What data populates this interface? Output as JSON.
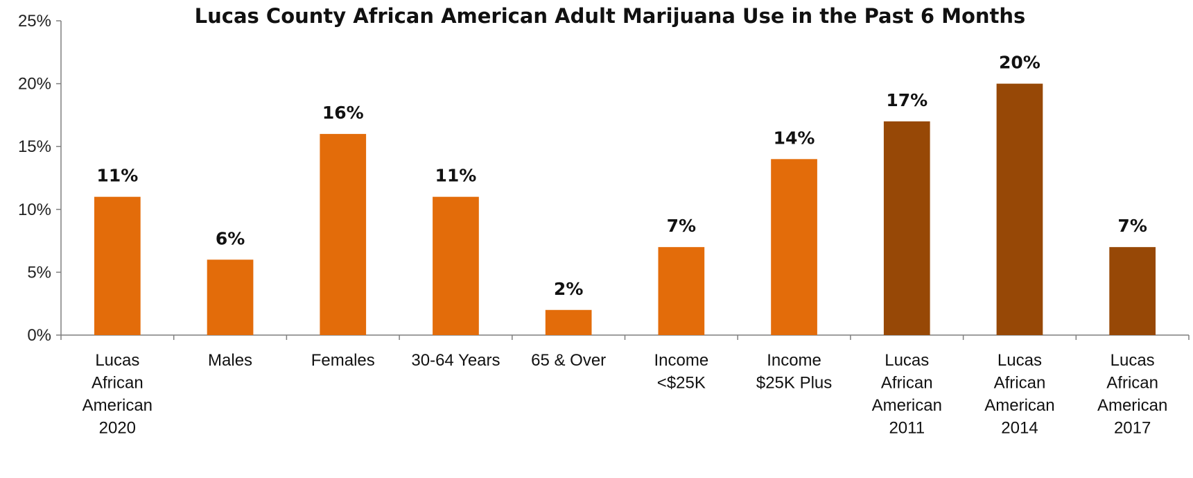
{
  "chart_data": {
    "type": "bar",
    "title": "Lucas County African American Adult Marijuana Use in the Past 6 Months",
    "xlabel": "",
    "ylabel": "",
    "ylim": [
      0,
      25
    ],
    "yticks": [
      "0%",
      "5%",
      "10%",
      "15%",
      "20%",
      "25%"
    ],
    "ytick_values": [
      0,
      5,
      10,
      15,
      20,
      25
    ],
    "grid": false,
    "legend": "none",
    "categories": [
      [
        "Lucas",
        "African",
        "American",
        "2020"
      ],
      [
        "Males"
      ],
      [
        "Females"
      ],
      [
        "30-64 Years"
      ],
      [
        "65 & Over"
      ],
      [
        "Income",
        "<$25K"
      ],
      [
        "Income",
        "$25K Plus"
      ],
      [
        "Lucas",
        "African",
        "American",
        "2011"
      ],
      [
        "Lucas",
        "African",
        "American",
        "2014"
      ],
      [
        "Lucas",
        "African",
        "American",
        "2017"
      ]
    ],
    "values": [
      11,
      6,
      16,
      11,
      2,
      7,
      14,
      17,
      20,
      7
    ],
    "value_labels": [
      "11%",
      "6%",
      "16%",
      "11%",
      "2%",
      "7%",
      "14%",
      "17%",
      "20%",
      "7%"
    ],
    "bar_colors": [
      "#E36C0A",
      "#E36C0A",
      "#E36C0A",
      "#E36C0A",
      "#E36C0A",
      "#E36C0A",
      "#E36C0A",
      "#974806",
      "#974806",
      "#974806"
    ]
  }
}
